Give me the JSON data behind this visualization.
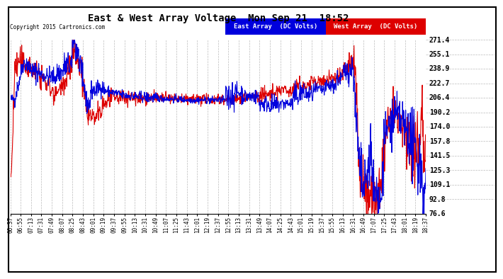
{
  "title": "East & West Array Voltage  Mon Sep 21  18:52",
  "copyright": "Copyright 2015 Cartronics.com",
  "east_label": "East Array  (DC Volts)",
  "west_label": "West Array  (DC Volts)",
  "east_color": "#0000dd",
  "west_color": "#dd0000",
  "legend_bg_east": "#0000dd",
  "legend_bg_west": "#dd0000",
  "background_color": "#ffffff",
  "plot_bg_color": "#ffffff",
  "grid_color": "#aaaaaa",
  "ymin": 76.6,
  "ymax": 271.4,
  "yticks": [
    76.6,
    92.8,
    109.1,
    125.3,
    141.5,
    157.8,
    174.0,
    190.2,
    206.4,
    222.7,
    238.9,
    255.1,
    271.4
  ],
  "x_labels": [
    "06:37",
    "06:55",
    "07:13",
    "07:31",
    "07:49",
    "08:07",
    "08:25",
    "08:43",
    "09:01",
    "09:19",
    "09:37",
    "09:55",
    "10:13",
    "10:31",
    "10:49",
    "11:07",
    "11:25",
    "11:43",
    "12:01",
    "12:19",
    "12:37",
    "12:55",
    "13:13",
    "13:31",
    "13:49",
    "14:07",
    "14:25",
    "14:43",
    "15:01",
    "15:19",
    "15:37",
    "15:55",
    "16:13",
    "16:31",
    "16:49",
    "17:07",
    "17:25",
    "17:43",
    "18:01",
    "18:19",
    "18:37"
  ]
}
